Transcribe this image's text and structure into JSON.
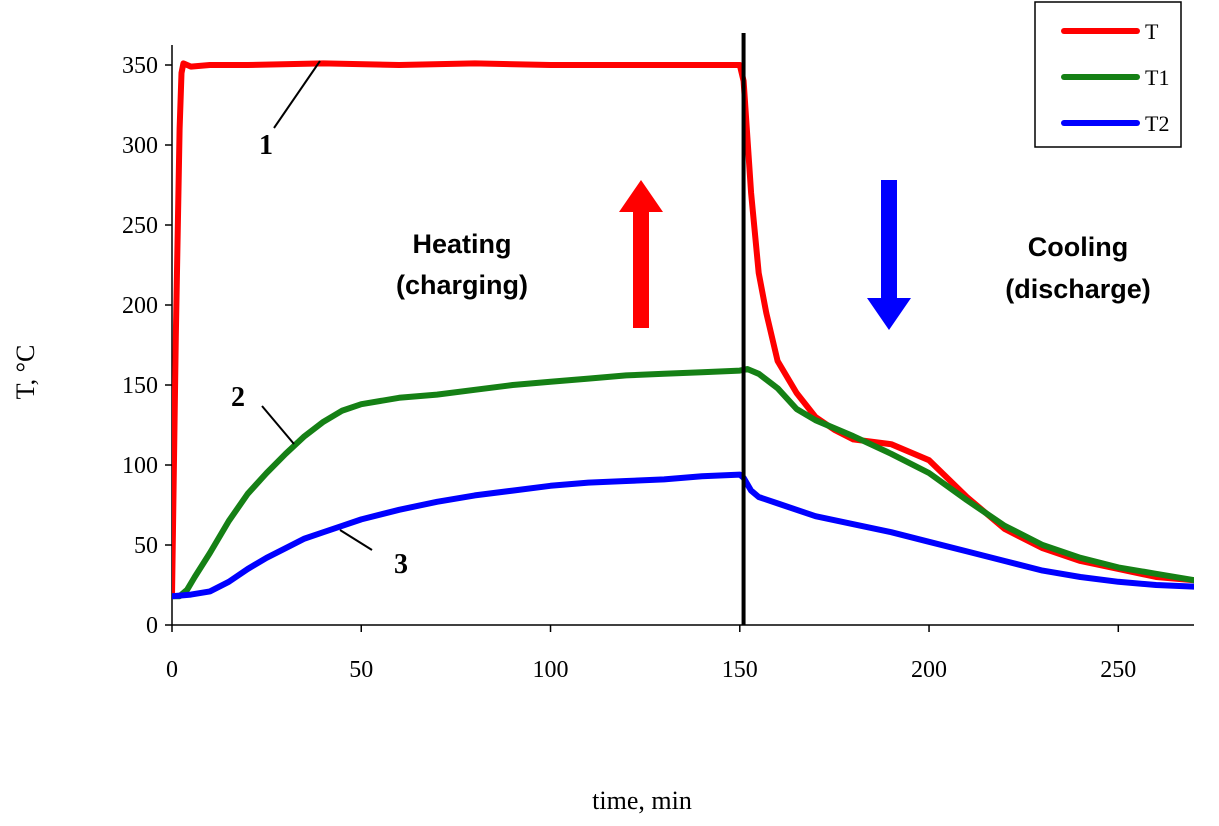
{
  "chart_data": {
    "type": "line",
    "title": "",
    "xlabel": "time, min",
    "ylabel": "T, °C",
    "xlim": [
      0,
      270
    ],
    "ylim": [
      0,
      360
    ],
    "xticks": [
      0,
      50,
      100,
      150,
      200,
      250
    ],
    "yticks": [
      0,
      50,
      100,
      150,
      200,
      250,
      300,
      350
    ],
    "xtick_labels": [
      "0",
      "50",
      "100",
      "150",
      "200",
      "250"
    ],
    "ytick_labels": [
      "0",
      "50",
      "100",
      "150",
      "200",
      "250",
      "300",
      "350"
    ],
    "divider_x": 151,
    "legend": {
      "placement": "top-right",
      "entries": [
        "T",
        "T1",
        "T2"
      ]
    },
    "series": [
      {
        "name": "T",
        "color": "#ff0000",
        "x": [
          0,
          1,
          2,
          2.5,
          3,
          5,
          10,
          20,
          40,
          60,
          80,
          100,
          120,
          140,
          150,
          151,
          153,
          155,
          157,
          160,
          165,
          170,
          175,
          180,
          190,
          200,
          210,
          220,
          230,
          240,
          250,
          260,
          270
        ],
        "y": [
          18,
          180,
          310,
          345,
          351,
          349,
          350,
          350,
          351,
          350,
          351,
          350,
          350,
          350,
          350,
          340,
          270,
          220,
          195,
          165,
          145,
          130,
          122,
          116,
          113,
          103,
          80,
          60,
          48,
          40,
          35,
          30,
          28
        ]
      },
      {
        "name": "T1",
        "color": "#158015",
        "x": [
          0,
          2,
          4,
          6,
          10,
          15,
          20,
          25,
          30,
          35,
          40,
          45,
          50,
          60,
          70,
          80,
          90,
          100,
          110,
          120,
          130,
          140,
          150,
          152,
          155,
          160,
          165,
          170,
          180,
          190,
          200,
          210,
          220,
          230,
          240,
          250,
          260,
          270
        ],
        "y": [
          18,
          18,
          22,
          30,
          45,
          65,
          82,
          95,
          107,
          118,
          127,
          134,
          138,
          142,
          144,
          147,
          150,
          152,
          154,
          156,
          157,
          158,
          159,
          160,
          157,
          148,
          135,
          128,
          118,
          107,
          95,
          78,
          62,
          50,
          42,
          36,
          32,
          28
        ]
      },
      {
        "name": "T2",
        "color": "#0000ff",
        "x": [
          0,
          5,
          10,
          15,
          20,
          25,
          30,
          35,
          40,
          45,
          50,
          60,
          70,
          80,
          90,
          100,
          110,
          120,
          130,
          140,
          150,
          151,
          153,
          155,
          160,
          170,
          180,
          190,
          200,
          210,
          220,
          230,
          240,
          250,
          260,
          270
        ],
        "y": [
          18,
          19,
          21,
          27,
          35,
          42,
          48,
          54,
          58,
          62,
          66,
          72,
          77,
          81,
          84,
          87,
          89,
          90,
          91,
          93,
          94,
          92,
          84,
          80,
          76,
          68,
          63,
          58,
          52,
          46,
          40,
          34,
          30,
          27,
          25,
          24
        ]
      }
    ],
    "annotations": {
      "heating_line1": "Heating",
      "heating_line2": "(charging)",
      "cooling_line1": "Cooling",
      "cooling_line2": "(discharge)",
      "curve_labels": [
        "1",
        "2",
        "3"
      ]
    },
    "arrow_colors": {
      "heating": "#ff0000",
      "cooling": "#0000ff"
    }
  }
}
